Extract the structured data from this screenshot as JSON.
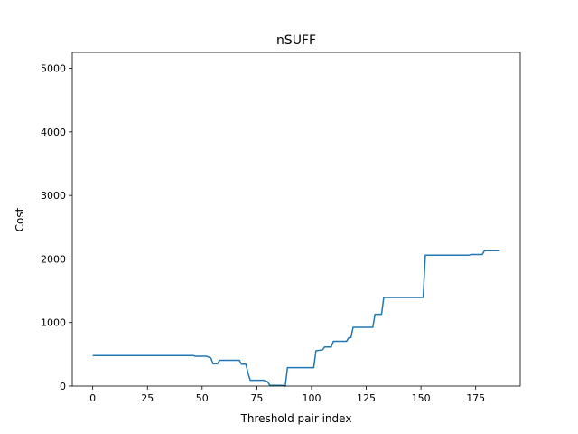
{
  "chart_data": {
    "type": "line",
    "title": "nSUFF",
    "xlabel": "Threshold pair index",
    "ylabel": "Cost",
    "xlim": [
      -9.35,
      195.35
    ],
    "ylim": [
      0,
      5250
    ],
    "x_ticks": [
      0,
      25,
      50,
      75,
      100,
      125,
      150,
      175
    ],
    "y_ticks": [
      0,
      1000,
      2000,
      3000,
      4000,
      5000
    ],
    "grid": false,
    "series": [
      {
        "color": "#1f77b4",
        "points": [
          [
            0,
            480
          ],
          [
            46,
            480
          ],
          [
            47,
            470
          ],
          [
            52,
            470
          ],
          [
            53,
            455
          ],
          [
            54,
            440
          ],
          [
            55,
            350
          ],
          [
            57,
            350
          ],
          [
            58,
            405
          ],
          [
            67,
            405
          ],
          [
            68,
            345
          ],
          [
            70,
            345
          ],
          [
            71,
            200
          ],
          [
            72,
            90
          ],
          [
            78,
            90
          ],
          [
            79,
            80
          ],
          [
            80,
            65
          ],
          [
            81,
            10
          ],
          [
            87,
            10
          ],
          [
            88,
            0
          ],
          [
            89,
            290
          ],
          [
            101,
            290
          ],
          [
            102,
            555
          ],
          [
            105,
            570
          ],
          [
            106,
            615
          ],
          [
            109,
            615
          ],
          [
            110,
            705
          ],
          [
            116,
            705
          ],
          [
            117,
            760
          ],
          [
            118,
            765
          ],
          [
            119,
            925
          ],
          [
            128,
            925
          ],
          [
            129,
            1130
          ],
          [
            132,
            1130
          ],
          [
            133,
            1395
          ],
          [
            151,
            1395
          ],
          [
            152,
            2060
          ],
          [
            172,
            2060
          ],
          [
            173,
            2070
          ],
          [
            178,
            2070
          ],
          [
            179,
            2130
          ],
          [
            186,
            2130
          ]
        ]
      }
    ]
  }
}
